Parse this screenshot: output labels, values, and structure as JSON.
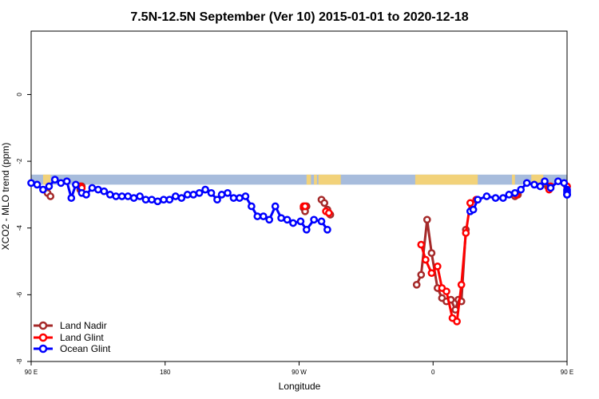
{
  "chart_data": {
    "type": "line",
    "title": "7.5N-12.5N September (Ver 10)   2015-01-01 to 2020-12-18",
    "xlabel": "Longitude",
    "ylabel": "XCO2 - MLO trend (ppm)",
    "xlim": [
      90,
      450
    ],
    "ylim": [
      -8,
      1.9
    ],
    "x_tick_values": [
      90,
      180,
      270,
      360,
      450
    ],
    "x_tick_labels": [
      "90 E",
      "180",
      "90 W",
      "0",
      "90 E"
    ],
    "y_tick_values": [
      0,
      -2,
      -4,
      -6,
      -8
    ],
    "y_tick_labels": [
      "0",
      "-2",
      "-4",
      "-6",
      "-8"
    ],
    "grid": false,
    "legend_position": "bottom-left",
    "land_mask": {
      "band_y_range": [
        -2.7,
        -2.4
      ],
      "ocean_color": "#a7bcdc",
      "land_color": "#f2d27a",
      "land_x_ranges": [
        [
          98,
          103
        ],
        [
          275,
          278
        ],
        [
          280,
          282
        ],
        [
          283,
          298
        ],
        [
          348,
          390
        ],
        [
          413,
          415
        ],
        [
          426,
          434
        ]
      ]
    },
    "series": [
      {
        "name": "Land Nadir",
        "color": "#a52a2a",
        "segments": [
          [
            [
              101,
              -2.95
            ],
            [
              103,
              -3.05
            ]
          ],
          [
            [
              123,
              -2.85
            ],
            [
              124,
              -2.75
            ]
          ],
          [
            [
              273,
              -3.4
            ],
            [
              274,
              -3.5
            ],
            [
              275,
              -3.35
            ]
          ],
          [
            [
              285,
              -3.15
            ],
            [
              287,
              -3.25
            ],
            [
              289,
              -3.45
            ],
            [
              291,
              -3.6
            ]
          ],
          [
            [
              349,
              -5.7
            ],
            [
              352,
              -5.4
            ],
            [
              356,
              -3.75
            ],
            [
              359,
              -4.75
            ],
            [
              363,
              -5.8
            ],
            [
              366,
              -6.1
            ],
            [
              369,
              -6.2
            ],
            [
              372,
              -6.15
            ],
            [
              375,
              -6.45
            ],
            [
              377,
              -6.15
            ],
            [
              379,
              -6.2
            ],
            [
              382,
              -4.05
            ]
          ],
          [
            [
              415,
              -3.05
            ],
            [
              417,
              -3.0
            ]
          ],
          [
            [
              437,
              -2.75
            ],
            [
              438,
              -2.8
            ]
          ],
          [
            [
              450,
              -2.75
            ]
          ]
        ]
      },
      {
        "name": "Land Glint",
        "color": "#ff0000",
        "segments": [
          [
            [
              123,
              -2.75
            ],
            [
              124,
              -2.8
            ]
          ],
          [
            [
              273,
              -3.35
            ],
            [
              274,
              -3.35
            ]
          ],
          [
            [
              288,
              -3.5
            ],
            [
              290,
              -3.55
            ]
          ],
          [
            [
              352,
              -4.5
            ],
            [
              355,
              -4.95
            ],
            [
              359,
              -5.35
            ],
            [
              363,
              -5.15
            ],
            [
              366,
              -5.8
            ],
            [
              369,
              -5.9
            ],
            [
              373,
              -6.7
            ],
            [
              376,
              -6.8
            ],
            [
              379,
              -5.7
            ],
            [
              382,
              -4.15
            ],
            [
              385,
              -3.25
            ],
            [
              389,
              -3.15
            ]
          ],
          [
            [
              416,
              -3.0
            ]
          ],
          [
            [
              438,
              -2.85
            ],
            [
              439,
              -2.75
            ]
          ],
          [
            [
              453,
              -2.75
            ]
          ]
        ]
      },
      {
        "name": "Ocean Glint",
        "color": "#0000ff",
        "segments": [
          [
            [
              90,
              -2.65
            ],
            [
              94,
              -2.7
            ],
            [
              98,
              -2.85
            ],
            [
              102,
              -2.75
            ],
            [
              106,
              -2.55
            ],
            [
              110,
              -2.65
            ],
            [
              114,
              -2.6
            ],
            [
              117,
              -3.1
            ],
            [
              120,
              -2.7
            ],
            [
              124,
              -2.95
            ],
            [
              127,
              -3.0
            ],
            [
              131,
              -2.8
            ],
            [
              135,
              -2.85
            ],
            [
              139,
              -2.9
            ],
            [
              143,
              -3.0
            ],
            [
              147,
              -3.05
            ],
            [
              151,
              -3.05
            ],
            [
              155,
              -3.05
            ],
            [
              159,
              -3.1
            ],
            [
              163,
              -3.05
            ],
            [
              167,
              -3.15
            ],
            [
              171,
              -3.15
            ],
            [
              175,
              -3.2
            ],
            [
              179,
              -3.15
            ],
            [
              183,
              -3.15
            ],
            [
              187,
              -3.05
            ],
            [
              191,
              -3.1
            ],
            [
              195,
              -3.0
            ],
            [
              199,
              -3.0
            ],
            [
              203,
              -2.95
            ],
            [
              207,
              -2.85
            ],
            [
              211,
              -2.95
            ],
            [
              215,
              -3.15
            ],
            [
              218,
              -3.0
            ],
            [
              222,
              -2.95
            ],
            [
              226,
              -3.1
            ],
            [
              230,
              -3.1
            ],
            [
              234,
              -3.05
            ],
            [
              238,
              -3.35
            ],
            [
              242,
              -3.65
            ],
            [
              246,
              -3.65
            ],
            [
              250,
              -3.75
            ],
            [
              254,
              -3.35
            ],
            [
              258,
              -3.7
            ],
            [
              262,
              -3.75
            ],
            [
              266,
              -3.85
            ],
            [
              271,
              -3.8
            ],
            [
              275,
              -4.05
            ],
            [
              280,
              -3.75
            ],
            [
              285,
              -3.8
            ],
            [
              289,
              -4.05
            ]
          ],
          [
            [
              385,
              -3.5
            ],
            [
              387,
              -3.45
            ],
            [
              390,
              -3.15
            ],
            [
              396,
              -3.05
            ],
            [
              402,
              -3.1
            ],
            [
              407,
              -3.1
            ],
            [
              411,
              -3.0
            ],
            [
              415,
              -2.95
            ],
            [
              419,
              -2.85
            ],
            [
              423,
              -2.65
            ],
            [
              428,
              -2.7
            ],
            [
              432,
              -2.75
            ],
            [
              435,
              -2.6
            ],
            [
              439,
              -2.8
            ],
            [
              444,
              -2.6
            ],
            [
              448,
              -2.65
            ],
            [
              453,
              -3.0
            ],
            [
              458,
              -3.0
            ],
            [
              462,
              -2.85
            ],
            [
              467,
              -2.9
            ],
            [
              471,
              -2.95
            ],
            [
              475,
              -3.0
            ],
            [
              479,
              -3.0
            ],
            [
              484,
              -3.0
            ]
          ]
        ]
      }
    ]
  }
}
